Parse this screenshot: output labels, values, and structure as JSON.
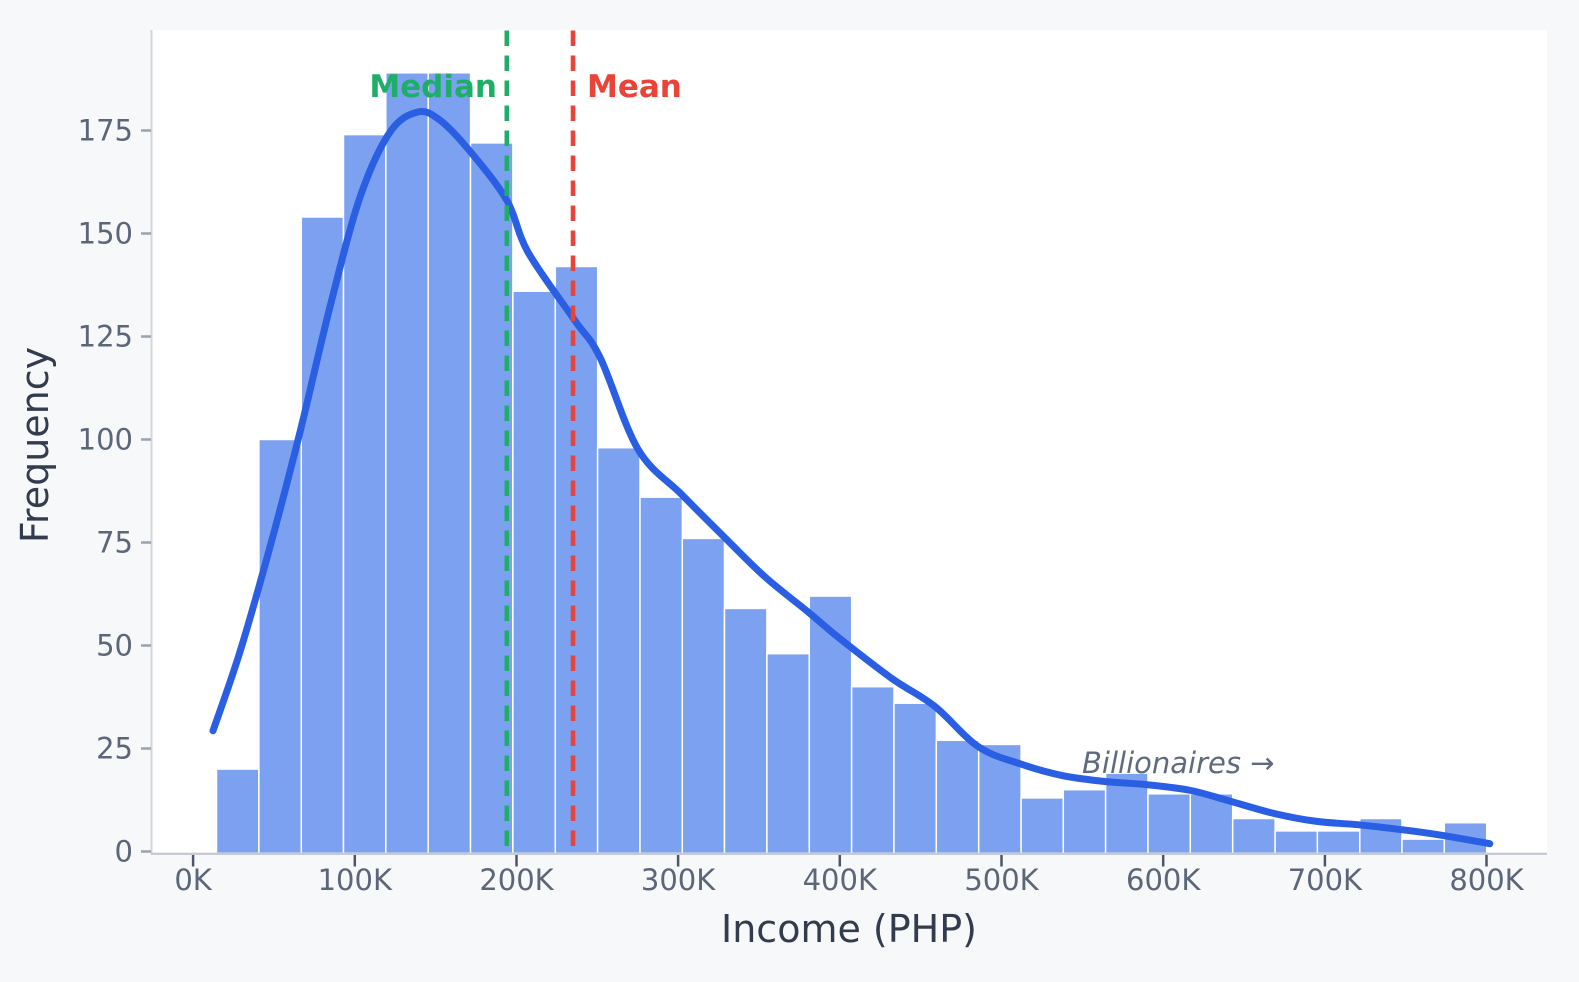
{
  "figure": {
    "background": "#f7f8fa",
    "plot_background": "#ffffff"
  },
  "chart_data": {
    "type": "bar",
    "subtype": "histogram-with-kde",
    "title": "",
    "xlabel": "Income (PHP)",
    "ylabel": "Frequency",
    "x_ticks": {
      "values_k": [
        0,
        100,
        200,
        300,
        400,
        500,
        600,
        700,
        800
      ],
      "labels": [
        "0K",
        "100K",
        "200K",
        "300K",
        "400K",
        "500K",
        "600K",
        "700K",
        "800K"
      ]
    },
    "y_ticks": [
      0,
      25,
      50,
      75,
      100,
      125,
      150,
      175
    ],
    "ylim": [
      0,
      199
    ],
    "xlim_k": [
      -25,
      837
    ],
    "grid": "off",
    "legend": "none",
    "bins": {
      "start_k": 14.5,
      "width_k": 26.19,
      "count": 30,
      "edges_k": [
        14.5,
        40.7,
        66.9,
        93.0,
        119.2,
        145.4,
        171.6,
        197.8,
        224.0,
        250.2,
        276.4,
        302.6,
        328.7,
        354.9,
        381.1,
        407.3,
        433.5,
        459.7,
        485.9,
        512.1,
        538.2,
        564.4,
        590.6,
        616.8,
        643.0,
        669.2,
        695.4,
        721.6,
        747.7,
        773.9,
        800.1
      ]
    },
    "frequencies": [
      20,
      100,
      154,
      174,
      189,
      189,
      172,
      136,
      142,
      98,
      86,
      76,
      59,
      48,
      62,
      40,
      36,
      27,
      26,
      13,
      15,
      19,
      14,
      14,
      8,
      5,
      5,
      8,
      3,
      7
    ],
    "bar_color": "#7ba1f0",
    "bar_edge_color": "#ffffff",
    "kde": {
      "color": "#2a5fe4",
      "points": [
        [
          12.3,
          29.3
        ],
        [
          29,
          48.5
        ],
        [
          47.6,
          74
        ],
        [
          66.1,
          101.8
        ],
        [
          84.7,
          132.2
        ],
        [
          103.2,
          158.8
        ],
        [
          121.8,
          174.6
        ],
        [
          139,
          179.5
        ],
        [
          152.7,
          177.5
        ],
        [
          171.2,
          170
        ],
        [
          194.1,
          158
        ],
        [
          207.1,
          145.5
        ],
        [
          235.5,
          129.2
        ],
        [
          251.6,
          120
        ],
        [
          275.1,
          97.7
        ],
        [
          302.3,
          86.6
        ],
        [
          328.3,
          76.4
        ],
        [
          353.6,
          66.7
        ],
        [
          380.2,
          58.2
        ],
        [
          400,
          51.7
        ],
        [
          432.2,
          42
        ],
        [
          458.8,
          35.2
        ],
        [
          485.4,
          25.5
        ],
        [
          511.3,
          21.3
        ],
        [
          537.9,
          18.4
        ],
        [
          563.9,
          17
        ],
        [
          590.5,
          16.2
        ],
        [
          617.1,
          14.8
        ],
        [
          642.4,
          12.1
        ],
        [
          669,
          9.2
        ],
        [
          695,
          7.3
        ],
        [
          720.4,
          6.5
        ],
        [
          747.6,
          5.3
        ],
        [
          772.9,
          3.9
        ],
        [
          802,
          1.9
        ]
      ]
    },
    "median_line": {
      "label": "Median",
      "x_k": 194,
      "color": "#1fae68"
    },
    "mean_line": {
      "label": "Mean",
      "x_k": 235,
      "color": "#e8443a"
    },
    "annotation": {
      "text": "Billionaires →",
      "x_k": 550,
      "y_value": 19
    },
    "text_colors": {
      "axis_label": "#333c4d",
      "tick_label": "#5b6679",
      "annotation": "#5f6a7d"
    }
  }
}
